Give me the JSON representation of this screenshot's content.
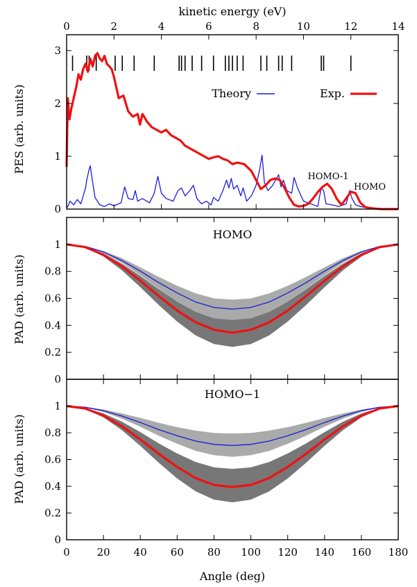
{
  "colors": {
    "theory": "#1a1adb",
    "experiment": "#ee1111",
    "band_light": "#aaaaaa",
    "band_dark": "#777777"
  },
  "chart_data": [
    {
      "type": "line",
      "ylabel": "PES (arb. units)",
      "x_top_label": "kinetic energy (eV)",
      "xlim": [
        0,
        14
      ],
      "ylim": [
        0,
        3.3
      ],
      "x_ticks": [
        "0",
        "2",
        "4",
        "6",
        "8",
        "10",
        "12",
        "14"
      ],
      "y_ticks": [
        "0",
        "1",
        "2",
        "3"
      ],
      "legend": {
        "position": "top-right",
        "theory": "Theory",
        "experiment": "Exp."
      },
      "annotations": [
        "HOMO-1",
        "HOMO"
      ],
      "stick_positions": [
        0.25,
        0.85,
        0.95,
        1.25,
        2.05,
        2.35,
        2.85,
        3.7,
        4.75,
        4.85,
        5.0,
        5.3,
        5.7,
        6.2,
        6.7,
        6.85,
        7.0,
        7.2,
        7.45,
        8.2,
        8.45,
        8.95,
        9.1,
        9.5,
        10.75,
        10.85,
        12.0
      ],
      "series": [
        {
          "name": "Theory",
          "x": [
            0,
            0.05,
            0.15,
            0.3,
            0.45,
            0.6,
            0.7,
            0.8,
            0.85,
            0.95,
            1.0,
            1.1,
            1.2,
            1.4,
            1.6,
            1.8,
            2.0,
            2.3,
            2.45,
            2.6,
            2.8,
            2.9,
            3.0,
            3.2,
            3.5,
            3.7,
            3.85,
            4.0,
            4.2,
            4.5,
            4.7,
            4.85,
            5.0,
            5.2,
            5.35,
            5.5,
            5.7,
            5.9,
            6.1,
            6.2,
            6.4,
            6.6,
            6.75,
            6.85,
            6.95,
            7.05,
            7.2,
            7.35,
            7.45,
            7.6,
            7.8,
            8.0,
            8.15,
            8.25,
            8.35,
            8.5,
            8.7,
            8.95,
            9.05,
            9.15,
            9.3,
            9.5,
            9.6,
            9.75,
            10.0,
            10.3,
            10.6,
            10.75,
            10.85,
            10.95,
            11.2,
            11.5,
            11.8,
            11.95,
            12.05,
            12.2,
            12.4,
            12.7,
            13.0,
            13.3,
            14.0
          ],
          "values": [
            0.02,
            0.05,
            0.15,
            0.08,
            0.18,
            0.1,
            0.25,
            0.4,
            0.55,
            0.75,
            0.82,
            0.5,
            0.22,
            0.08,
            0.05,
            0.1,
            0.06,
            0.12,
            0.42,
            0.2,
            0.18,
            0.35,
            0.15,
            0.2,
            0.12,
            0.3,
            0.62,
            0.3,
            0.2,
            0.15,
            0.35,
            0.4,
            0.25,
            0.35,
            0.45,
            0.2,
            0.1,
            0.15,
            0.08,
            0.22,
            0.15,
            0.35,
            0.55,
            0.4,
            0.58,
            0.38,
            0.45,
            0.25,
            0.4,
            0.15,
            0.25,
            0.45,
            0.75,
            1.02,
            0.5,
            0.35,
            0.45,
            0.65,
            0.42,
            0.55,
            0.35,
            0.3,
            0.6,
            0.4,
            0.15,
            0.1,
            0.05,
            0.4,
            0.35,
            0.1,
            0.08,
            0.05,
            0.1,
            0.35,
            0.2,
            0.08,
            0.05,
            0.02,
            0.01,
            0.0,
            0.0
          ]
        },
        {
          "name": "Exp.",
          "x": [
            0,
            0.05,
            0.12,
            0.2,
            0.3,
            0.4,
            0.5,
            0.6,
            0.7,
            0.8,
            0.9,
            1.0,
            1.1,
            1.2,
            1.3,
            1.4,
            1.5,
            1.6,
            1.7,
            1.8,
            1.9,
            2.0,
            2.1,
            2.2,
            2.4,
            2.6,
            2.8,
            3.0,
            3.1,
            3.2,
            3.4,
            3.6,
            3.8,
            4.0,
            4.2,
            4.4,
            4.6,
            4.8,
            5.0,
            5.2,
            5.4,
            5.6,
            5.8,
            6.0,
            6.2,
            6.4,
            6.6,
            6.8,
            7.0,
            7.2,
            7.5,
            7.8,
            8.0,
            8.2,
            8.4,
            8.6,
            8.8,
            9.0,
            9.2,
            9.4,
            9.6,
            9.8,
            10.0,
            10.2,
            10.4,
            10.6,
            10.8,
            11.0,
            11.2,
            11.4,
            11.6,
            11.8,
            12.0,
            12.2,
            12.4,
            12.6,
            12.8,
            13.0,
            13.3,
            14.0
          ],
          "values": [
            0.8,
            2.1,
            1.7,
            1.9,
            2.1,
            2.3,
            2.55,
            2.45,
            2.65,
            2.75,
            2.6,
            2.85,
            2.7,
            2.9,
            2.95,
            2.85,
            2.8,
            2.9,
            2.75,
            2.7,
            2.65,
            2.5,
            2.3,
            2.1,
            2.15,
            1.85,
            1.75,
            1.8,
            1.6,
            1.8,
            1.65,
            1.55,
            1.5,
            1.45,
            1.5,
            1.4,
            1.35,
            1.3,
            1.2,
            1.15,
            1.1,
            1.05,
            1.0,
            0.95,
            0.98,
            1.0,
            0.95,
            0.92,
            0.85,
            0.88,
            0.85,
            0.72,
            0.55,
            0.38,
            0.45,
            0.55,
            0.58,
            0.55,
            0.4,
            0.22,
            0.08,
            0.05,
            0.06,
            0.1,
            0.2,
            0.32,
            0.42,
            0.48,
            0.38,
            0.2,
            0.08,
            0.2,
            0.33,
            0.3,
            0.12,
            0.04,
            0.02,
            0.01,
            0.0,
            0.0
          ]
        }
      ]
    },
    {
      "type": "line",
      "title": "HOMO",
      "ylabel": "PAD (arb. units)",
      "xlim": [
        0,
        180
      ],
      "ylim": [
        0,
        1.2
      ],
      "y_ticks": [
        "0",
        "0.2",
        "0.4",
        "0.6",
        "0.8",
        "1"
      ],
      "x": [
        0,
        10,
        20,
        30,
        40,
        50,
        60,
        70,
        80,
        90,
        100,
        110,
        120,
        130,
        140,
        150,
        160,
        170,
        180
      ],
      "series": [
        {
          "name": "Theory",
          "values": [
            1.0,
            0.986,
            0.944,
            0.88,
            0.802,
            0.717,
            0.64,
            0.573,
            0.533,
            0.52,
            0.533,
            0.573,
            0.64,
            0.717,
            0.802,
            0.88,
            0.944,
            0.986,
            1.0
          ]
        },
        {
          "name": "Exp.",
          "values": [
            1.0,
            0.98,
            0.923,
            0.837,
            0.731,
            0.617,
            0.51,
            0.423,
            0.367,
            0.345,
            0.367,
            0.423,
            0.51,
            0.617,
            0.731,
            0.837,
            0.923,
            0.98,
            1.0
          ]
        }
      ],
      "bands": [
        {
          "lower": [
            1.0,
            0.984,
            0.937,
            0.863,
            0.771,
            0.671,
            0.578,
            0.5,
            0.451,
            0.43,
            0.451,
            0.5,
            0.578,
            0.671,
            0.771,
            0.863,
            0.937,
            0.984,
            1.0
          ],
          "upper": [
            1.0,
            0.988,
            0.952,
            0.898,
            0.83,
            0.759,
            0.693,
            0.637,
            0.6,
            0.59,
            0.6,
            0.637,
            0.693,
            0.759,
            0.83,
            0.898,
            0.952,
            0.988,
            1.0
          ]
        },
        {
          "lower": [
            1.0,
            0.977,
            0.91,
            0.808,
            0.683,
            0.551,
            0.428,
            0.326,
            0.261,
            0.24,
            0.261,
            0.326,
            0.428,
            0.551,
            0.683,
            0.808,
            0.91,
            0.977,
            1.0
          ],
          "upper": [
            1.0,
            0.983,
            0.934,
            0.857,
            0.767,
            0.668,
            0.577,
            0.5,
            0.452,
            0.44,
            0.452,
            0.5,
            0.577,
            0.668,
            0.767,
            0.857,
            0.934,
            0.983,
            1.0
          ]
        }
      ]
    },
    {
      "type": "line",
      "title": "HOMO−1",
      "ylabel": "PAD (arb. units)",
      "xlabel": "Angle (deg)",
      "xlim": [
        0,
        180
      ],
      "ylim": [
        0,
        1.2
      ],
      "x_ticks": [
        "0",
        "20",
        "40",
        "60",
        "80",
        "100",
        "120",
        "140",
        "160",
        "180"
      ],
      "y_ticks": [
        "0",
        "0.2",
        "0.4",
        "0.6",
        "0.8",
        "1"
      ],
      "x": [
        0,
        10,
        20,
        30,
        40,
        50,
        60,
        70,
        80,
        90,
        100,
        110,
        120,
        130,
        140,
        150,
        160,
        170,
        180
      ],
      "series": [
        {
          "name": "Theory",
          "values": [
            1.0,
            0.991,
            0.965,
            0.925,
            0.877,
            0.824,
            0.778,
            0.738,
            0.713,
            0.705,
            0.713,
            0.738,
            0.778,
            0.824,
            0.877,
            0.925,
            0.965,
            0.991,
            1.0
          ]
        },
        {
          "name": "Exp.",
          "values": [
            1.0,
            0.982,
            0.929,
            0.848,
            0.75,
            0.643,
            0.545,
            0.462,
            0.41,
            0.395,
            0.41,
            0.462,
            0.545,
            0.643,
            0.75,
            0.848,
            0.929,
            0.982,
            1.0
          ]
        }
      ],
      "bands": [
        {
          "lower": [
            1.0,
            0.989,
            0.956,
            0.906,
            0.845,
            0.778,
            0.718,
            0.665,
            0.632,
            0.62,
            0.632,
            0.665,
            0.718,
            0.778,
            0.845,
            0.906,
            0.956,
            0.989,
            1.0
          ],
          "upper": [
            1.0,
            0.993,
            0.974,
            0.945,
            0.911,
            0.875,
            0.842,
            0.816,
            0.799,
            0.795,
            0.799,
            0.816,
            0.842,
            0.875,
            0.911,
            0.945,
            0.974,
            0.993,
            1.0
          ]
        },
        {
          "lower": [
            1.0,
            0.978,
            0.915,
            0.819,
            0.703,
            0.576,
            0.458,
            0.362,
            0.3,
            0.28,
            0.3,
            0.362,
            0.458,
            0.576,
            0.703,
            0.819,
            0.915,
            0.978,
            1.0
          ],
          "upper": [
            1.0,
            0.986,
            0.945,
            0.883,
            0.805,
            0.721,
            0.645,
            0.582,
            0.542,
            0.53,
            0.542,
            0.582,
            0.645,
            0.721,
            0.805,
            0.883,
            0.945,
            0.986,
            1.0
          ]
        }
      ]
    }
  ]
}
